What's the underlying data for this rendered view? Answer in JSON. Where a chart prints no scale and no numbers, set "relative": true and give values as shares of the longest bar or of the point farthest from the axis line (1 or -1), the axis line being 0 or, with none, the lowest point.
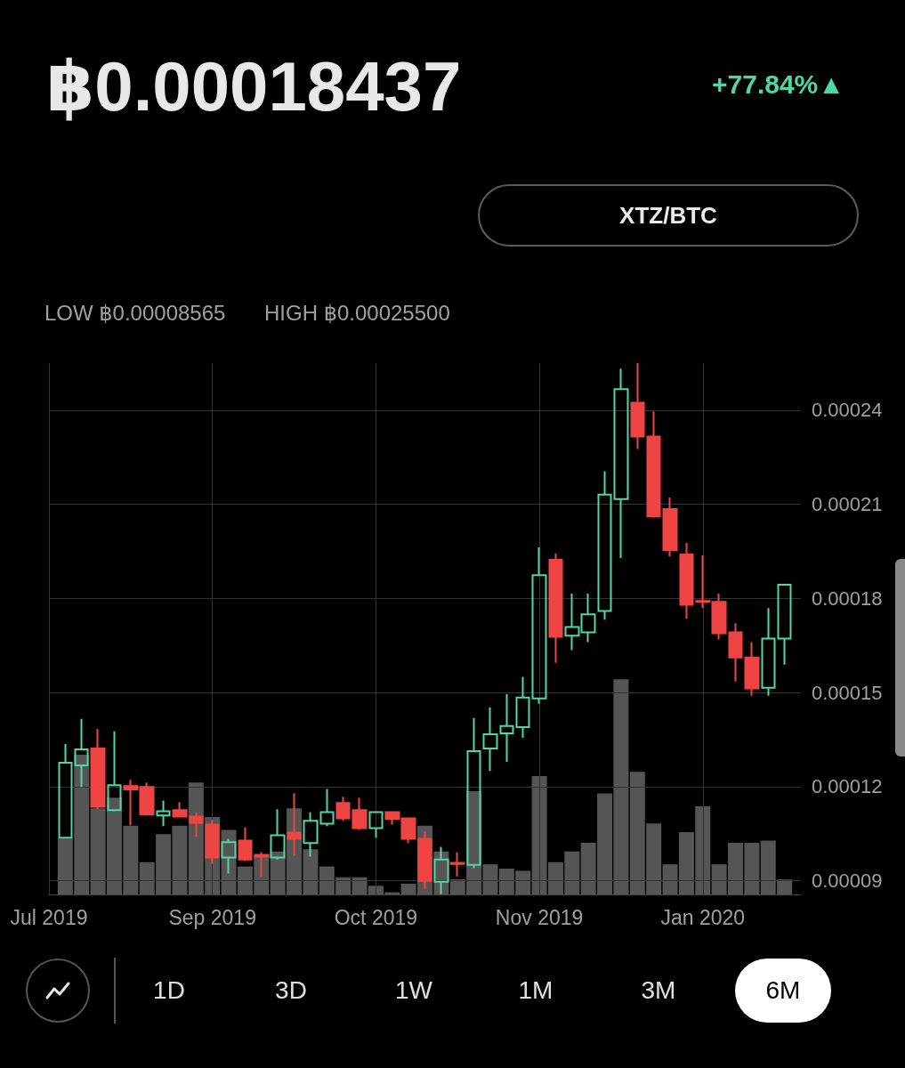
{
  "chart_data": [
    {
      "type": "candlestick",
      "title": "฿0.00018437",
      "annotations": [
        "+77.84%▲",
        "LOW ฿0.00008565",
        "HIGH ฿0.00025500",
        "XTZ/BTC",
        "1D",
        "3D",
        "1W",
        "1M",
        "3M",
        "6M"
      ],
      "x": [
        "2019-08-02",
        "2019-08-06",
        "2019-08-10",
        "2019-08-14",
        "2019-08-18",
        "2019-08-22",
        "2019-08-26",
        "2019-08-30",
        "2019-09-03",
        "2019-09-07",
        "2019-09-11",
        "2019-09-15",
        "2019-09-19",
        "2019-09-23",
        "2019-09-27",
        "2019-10-01",
        "2019-10-05",
        "2019-10-09",
        "2019-10-13",
        "2019-10-17",
        "2019-10-21",
        "2019-10-25",
        "2019-10-29",
        "2019-11-02",
        "2019-11-06",
        "2019-11-10",
        "2019-11-14",
        "2019-11-18",
        "2019-11-22",
        "2019-11-26",
        "2019-11-30",
        "2019-12-04",
        "2019-12-08",
        "2019-12-12",
        "2019-12-16",
        "2019-12-20",
        "2019-12-24",
        "2019-12-28",
        "2020-01-01",
        "2020-01-05",
        "2020-01-09",
        "2020-01-13",
        "2020-01-17",
        "2020-01-21",
        "2020-01-25"
      ],
      "ohlc": [
        [
          0.0001037,
          0.0001336,
          0.0001037,
          0.0001276
        ],
        [
          0.0001268,
          0.0001416,
          0.0001199,
          0.0001319
        ],
        [
          0.0001322,
          0.0001384,
          0.0001128,
          0.0001136
        ],
        [
          0.0001125,
          0.0001376,
          0.0001122,
          0.0001205
        ],
        [
          0.0001202,
          0.0001222,
          0.0001077,
          0.0001191
        ],
        [
          0.0001199,
          0.0001213,
          0.0001108,
          0.0001111
        ],
        [
          0.0001108,
          0.0001156,
          0.0001074,
          0.0001122
        ],
        [
          0.0001125,
          0.0001151,
          0.0001105,
          0.0001105
        ],
        [
          0.0001105,
          0.0001117,
          0.000104,
          0.0001085
        ],
        [
          0.0001079,
          0.0001094,
          9.54e-05,
          9.74e-05
        ],
        [
          9.74e-05,
          0.0001034,
          9.23e-05,
          0.0001023
        ],
        [
          0.0001028,
          0.0001071,
          9.63e-05,
          9.68e-05
        ],
        [
          9.83e-05,
          9.91e-05,
          9.14e-05,
          9.77e-05
        ],
        [
          9.74e-05,
          0.0001128,
          9.68e-05,
          0.0001045
        ],
        [
          0.0001054,
          0.0001179,
          9.8e-05,
          0.0001034
        ],
        [
          0.000102,
          0.0001119,
          9.77e-05,
          0.0001091
        ],
        [
          0.0001082,
          0.0001193,
          0.0001074,
          0.0001119
        ],
        [
          0.0001148,
          0.0001168,
          0.0001091,
          0.0001099
        ],
        [
          0.0001125,
          0.0001165,
          0.0001062,
          0.0001068
        ],
        [
          0.0001068,
          0.0001119,
          0.0001037,
          0.0001119
        ],
        [
          0.0001119,
          0.0001119,
          0.0001079,
          0.0001097
        ],
        [
          0.0001099,
          0.0001099,
          0.000102,
          0.0001034
        ],
        [
          0.0001034,
          0.0001057,
          8.72e-05,
          9e-05
        ],
        [
          8.97e-05,
          0.0001008,
          8.57e-05,
          9.68e-05
        ],
        [
          9.57e-05,
          9.91e-05,
          9.14e-05,
          9.54e-05
        ],
        [
          9.51e-05,
          0.0001419,
          9.4e-05,
          0.0001313
        ],
        [
          0.0001322,
          0.0001453,
          0.000125,
          0.0001367
        ],
        [
          0.000137,
          0.0001495,
          0.0001279,
          0.0001393
        ],
        [
          0.000139,
          0.000155,
          0.0001356,
          0.0001484
        ],
        [
          0.0001481,
          0.0001963,
          0.0001464,
          0.0001874
        ],
        [
          0.0001923,
          0.0001943,
          0.0001595,
          0.0001678
        ],
        [
          0.0001681,
          0.0001815,
          0.0001635,
          0.0001709
        ],
        [
          0.0001692,
          0.0001815,
          0.0001661,
          0.0001749
        ],
        [
          0.000176,
          0.0002205,
          0.0001732,
          0.0002131
        ],
        [
          0.0002117,
          0.0002532,
          0.0001929,
          0.0002467
        ],
        [
          0.0002424,
          0.000255,
          0.0002276,
          0.0002316
        ],
        [
          0.0002316,
          0.0002396,
          0.0002057,
          0.0002062
        ],
        [
          0.0002085,
          0.0002122,
          0.0001934,
          0.0001954
        ],
        [
          0.000194,
          0.0001977,
          0.0001735,
          0.000178
        ],
        [
          0.0001792,
          0.0001937,
          0.0001769,
          0.0001789
        ],
        [
          0.0001789,
          0.0001815,
          0.0001669,
          0.0001689
        ],
        [
          0.0001692,
          0.0001721,
          0.0001535,
          0.0001612
        ],
        [
          0.0001612,
          0.0001661,
          0.000149,
          0.0001513
        ],
        [
          0.0001515,
          0.0001769,
          0.000149,
          0.0001672
        ],
        [
          0.0001672,
          0.0001844,
          0.0001589,
          0.0001844
        ]
      ],
      "colors": [
        "#52d6a6",
        "#52d6a6",
        "#ef4444",
        "#52d6a6",
        "#ef4444",
        "#ef4444",
        "#52d6a6",
        "#ef4444",
        "#ef4444",
        "#ef4444",
        "#52d6a6",
        "#ef4444",
        "#ef4444",
        "#52d6a6",
        "#ef4444",
        "#52d6a6",
        "#52d6a6",
        "#ef4444",
        "#ef4444",
        "#52d6a6",
        "#ef4444",
        "#ef4444",
        "#ef4444",
        "#52d6a6",
        "#ef4444",
        "#52d6a6",
        "#52d6a6",
        "#52d6a6",
        "#52d6a6",
        "#52d6a6",
        "#ef4444",
        "#52d6a6",
        "#52d6a6",
        "#52d6a6",
        "#52d6a6",
        "#ef4444",
        "#ef4444",
        "#ef4444",
        "#ef4444",
        "#ef4444",
        "#ef4444",
        "#ef4444",
        "#ef4444",
        "#52d6a6",
        "#52d6a6"
      ],
      "xlim": [
        "2019-07-29",
        "2020-01-29"
      ],
      "xticks": [
        {
          "value": "2019-07-29",
          "label": "Jul 2019"
        },
        {
          "value": "2019-09-07",
          "label": "Sep 2019"
        },
        {
          "value": "2019-10-17",
          "label": "Oct 2019"
        },
        {
          "value": "2019-11-26",
          "label": "Nov 2019"
        },
        {
          "value": "2020-01-05",
          "label": "Jan 2020"
        }
      ],
      "ylim": [
        8.565e-05,
        0.000255
      ],
      "yticks": [
        {
          "value": 9e-05,
          "label": "0.00009"
        },
        0.00012,
        0.00015,
        0.00018,
        0.00021,
        0.00024
      ],
      "grid": true
    },
    {
      "type": "bar",
      "relative": true,
      "color": "#555555",
      "x": [
        "2019-08-02",
        "2019-08-06",
        "2019-08-10",
        "2019-08-14",
        "2019-08-18",
        "2019-08-22",
        "2019-08-26",
        "2019-08-30",
        "2019-09-03",
        "2019-09-07",
        "2019-09-11",
        "2019-09-15",
        "2019-09-19",
        "2019-09-23",
        "2019-09-27",
        "2019-10-01",
        "2019-10-05",
        "2019-10-09",
        "2019-10-13",
        "2019-10-17",
        "2019-10-21",
        "2019-10-25",
        "2019-10-29",
        "2019-11-02",
        "2019-11-06",
        "2019-11-10",
        "2019-11-14",
        "2019-11-18",
        "2019-11-22",
        "2019-11-26",
        "2019-11-30",
        "2019-12-04",
        "2019-12-08",
        "2019-12-12",
        "2019-12-16",
        "2019-12-20",
        "2019-12-24",
        "2019-12-28",
        "2020-01-01",
        "2020-01-05",
        "2020-01-09",
        "2020-01-13",
        "2020-01-17",
        "2020-01-21",
        "2020-01-25"
      ],
      "values": [
        0.26,
        0.65,
        0.4,
        0.45,
        0.32,
        0.15,
        0.28,
        0.32,
        0.52,
        0.36,
        0.3,
        0.13,
        0.18,
        0.2,
        0.4,
        0.21,
        0.13,
        0.08,
        0.08,
        0.04,
        0.01,
        0.05,
        0.32,
        0.2,
        0.07,
        0.48,
        0.14,
        0.12,
        0.11,
        0.55,
        0.15,
        0.2,
        0.24,
        0.47,
        1,
        0.57,
        0.33,
        0.14,
        0.29,
        0.41,
        0.14,
        0.24,
        0.24,
        0.25,
        0.07
      ],
      "xlim": [
        "2019-07-29",
        "2020-01-29"
      ]
    }
  ]
}
